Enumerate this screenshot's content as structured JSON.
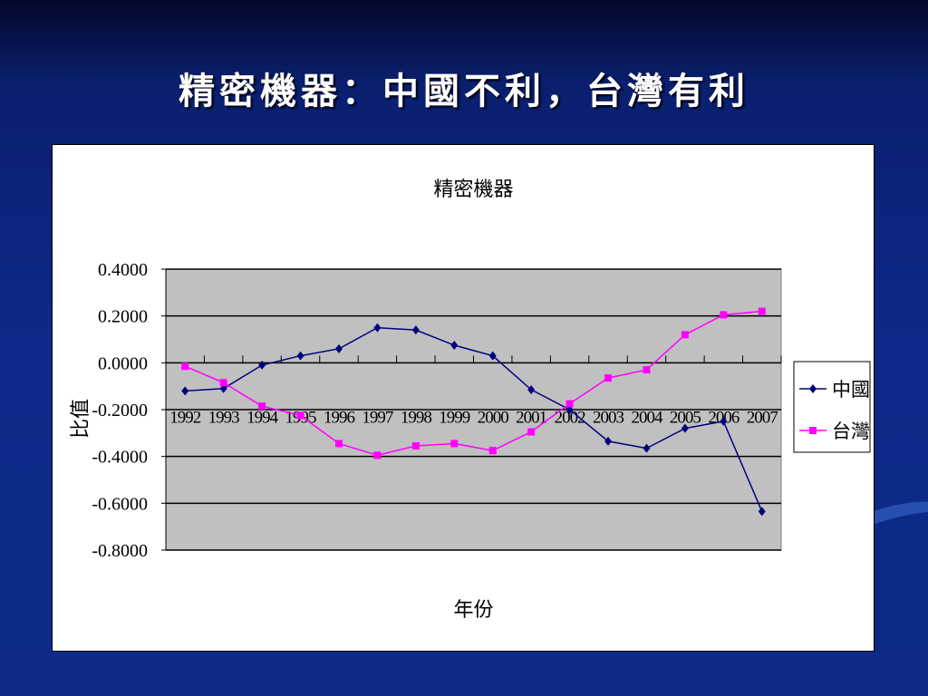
{
  "slide": {
    "title": "精密機器：中國不利，台灣有利"
  },
  "chart_data": {
    "type": "line",
    "title": "精密機器",
    "xlabel": "年份",
    "ylabel": "比值",
    "ylim": [
      -0.8,
      0.4
    ],
    "y_ticks": [
      0.4,
      0.2,
      0.0,
      -0.2,
      -0.4,
      -0.6,
      -0.8
    ],
    "y_tick_labels": [
      "0.4000",
      "0.2000",
      "0.0000",
      "-0.2000",
      "-0.4000",
      "-0.6000",
      "-0.8000"
    ],
    "categories": [
      "1992",
      "1993",
      "1994",
      "1995",
      "1996",
      "1997",
      "1998",
      "1999",
      "2000",
      "2001",
      "2002",
      "2003",
      "2004",
      "2005",
      "2006",
      "2007"
    ],
    "grid": true,
    "legend_position": "right",
    "plot_background": "#c0c0c0",
    "series": [
      {
        "name": "中國",
        "color": "#000080",
        "marker": "diamond",
        "values": [
          -0.12,
          -0.11,
          -0.01,
          0.03,
          0.06,
          0.15,
          0.14,
          0.075,
          0.03,
          -0.115,
          -0.2,
          -0.335,
          -0.365,
          -0.28,
          -0.25,
          -0.635
        ]
      },
      {
        "name": "台灣",
        "color": "#ff00ff",
        "marker": "square",
        "values": [
          -0.015,
          -0.085,
          -0.185,
          -0.225,
          -0.345,
          -0.395,
          -0.355,
          -0.345,
          -0.375,
          -0.295,
          -0.175,
          -0.065,
          -0.03,
          0.12,
          0.205,
          0.22
        ]
      }
    ]
  }
}
